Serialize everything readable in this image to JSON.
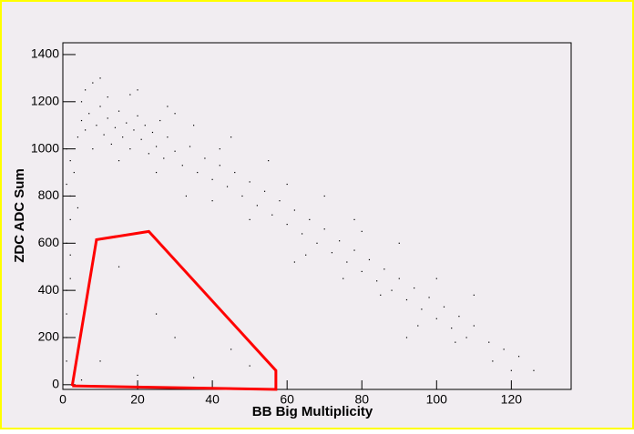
{
  "chart_data": {
    "type": "scatter",
    "x_label": "BB Big Multiplicity",
    "y_label": "ZDC ADC Sum",
    "xlim": [
      0,
      136
    ],
    "ylim": [
      -20,
      1450
    ],
    "xticks": [
      0,
      20,
      40,
      60,
      80,
      100,
      120
    ],
    "yticks": [
      0,
      200,
      400,
      600,
      800,
      1000,
      1200,
      1400
    ],
    "color": "#000000",
    "series": [
      {
        "color": "#000000",
        "x": [
          1,
          1,
          2,
          1,
          2,
          1,
          2,
          1,
          2,
          1,
          2,
          1,
          4,
          5,
          6,
          7,
          8,
          9,
          10,
          11,
          12,
          13,
          14,
          15,
          16,
          17,
          18,
          19,
          20,
          21,
          22,
          23,
          24,
          25,
          26,
          27,
          28,
          30,
          32,
          34,
          36,
          38,
          40,
          42,
          44,
          46,
          48,
          50,
          52,
          54,
          56,
          58,
          60,
          62,
          64,
          66,
          68,
          70,
          72,
          74,
          76,
          78,
          80,
          82,
          84,
          86,
          88,
          90,
          92,
          94,
          96,
          98,
          100,
          102,
          104,
          106,
          108,
          110,
          114,
          118,
          122,
          126,
          6,
          10,
          15,
          20,
          25,
          30,
          35,
          40,
          45,
          50,
          55,
          60,
          65,
          70,
          75,
          80,
          85,
          90,
          95,
          100,
          105,
          110,
          115,
          3,
          4,
          5,
          8,
          12,
          18,
          28,
          33,
          42,
          62,
          78,
          92,
          120,
          10,
          20,
          35,
          45,
          25,
          15,
          50,
          5,
          30
        ],
        "y": [
          100,
          300,
          450,
          600,
          700,
          850,
          950,
          200,
          550,
          1000,
          800,
          400,
          1050,
          1120,
          1080,
          1150,
          1000,
          1100,
          1180,
          1060,
          1130,
          1020,
          1090,
          1160,
          1050,
          1110,
          1000,
          1080,
          1140,
          1040,
          1100,
          980,
          1070,
          1010,
          1120,
          960,
          1050,
          990,
          930,
          1010,
          900,
          960,
          870,
          930,
          840,
          900,
          800,
          860,
          760,
          820,
          720,
          780,
          680,
          740,
          640,
          700,
          600,
          660,
          560,
          610,
          520,
          570,
          480,
          530,
          440,
          490,
          400,
          450,
          360,
          410,
          320,
          370,
          280,
          330,
          240,
          290,
          200,
          250,
          180,
          150,
          120,
          60,
          1250,
          1300,
          950,
          1250,
          900,
          1150,
          1100,
          780,
          1050,
          700,
          950,
          850,
          550,
          800,
          450,
          650,
          380,
          600,
          250,
          450,
          180,
          380,
          100,
          900,
          750,
          1200,
          1280,
          1220,
          1230,
          1180,
          800,
          1000,
          520,
          700,
          200,
          60,
          100,
          40,
          30,
          150,
          300,
          500,
          80,
          20,
          200
        ]
      }
    ],
    "cut": {
      "color": "#ff0000",
      "x": [
        2.5,
        9,
        23,
        57,
        57,
        2.5
      ],
      "y": [
        -5,
        615,
        650,
        60,
        -20,
        -5
      ]
    }
  }
}
